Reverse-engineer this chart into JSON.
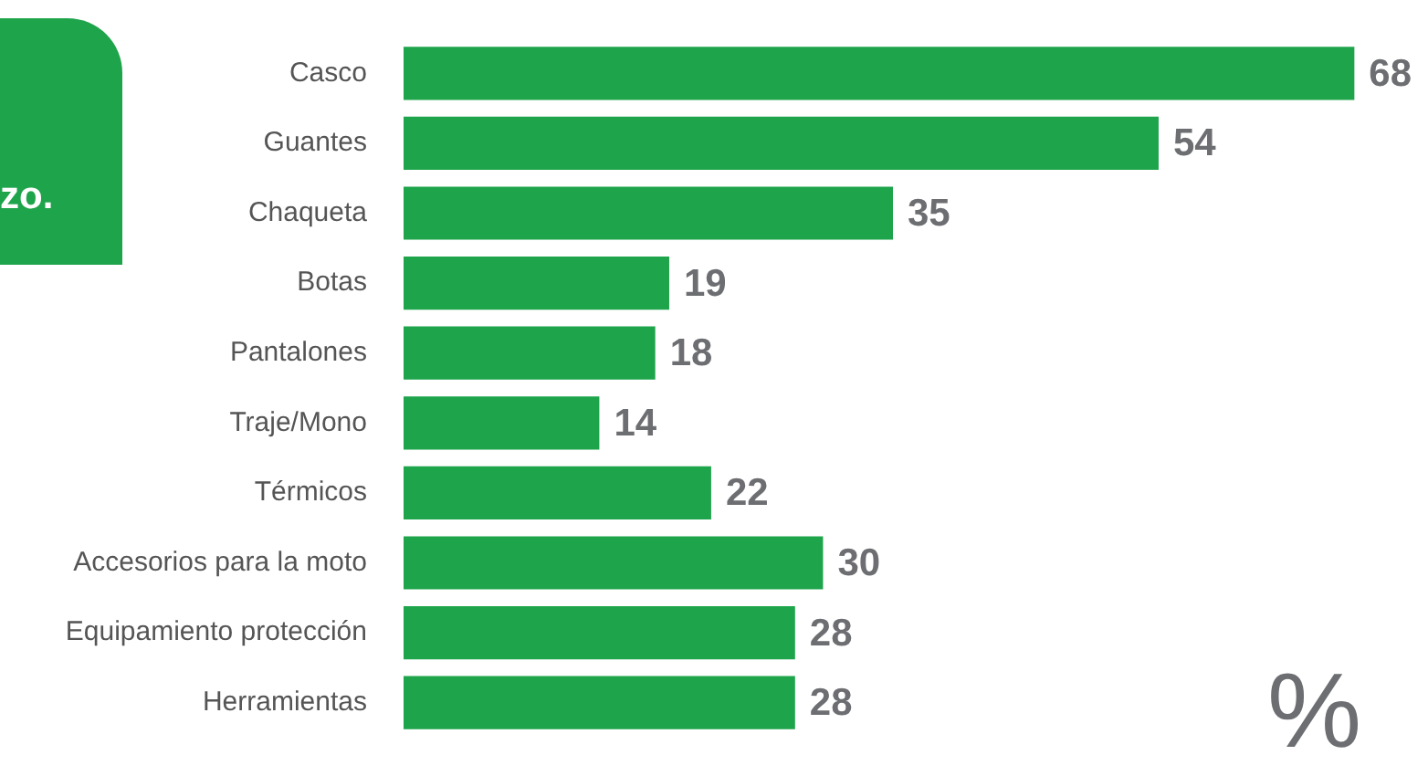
{
  "chart_data": {
    "type": "bar",
    "orientation": "horizontal",
    "categories": [
      "Casco",
      "Guantes",
      "Chaqueta",
      "Botas",
      "Pantalones",
      "Traje/Mono",
      "Térmicos",
      "Accesorios para la moto",
      "Equipamiento protección",
      "Herramientas"
    ],
    "values": [
      68,
      54,
      35,
      19,
      18,
      14,
      22,
      30,
      28,
      28
    ],
    "color": "#1ea44b",
    "data_labels": true,
    "legend": false,
    "annotations": [
      "zo.",
      "%"
    ]
  }
}
